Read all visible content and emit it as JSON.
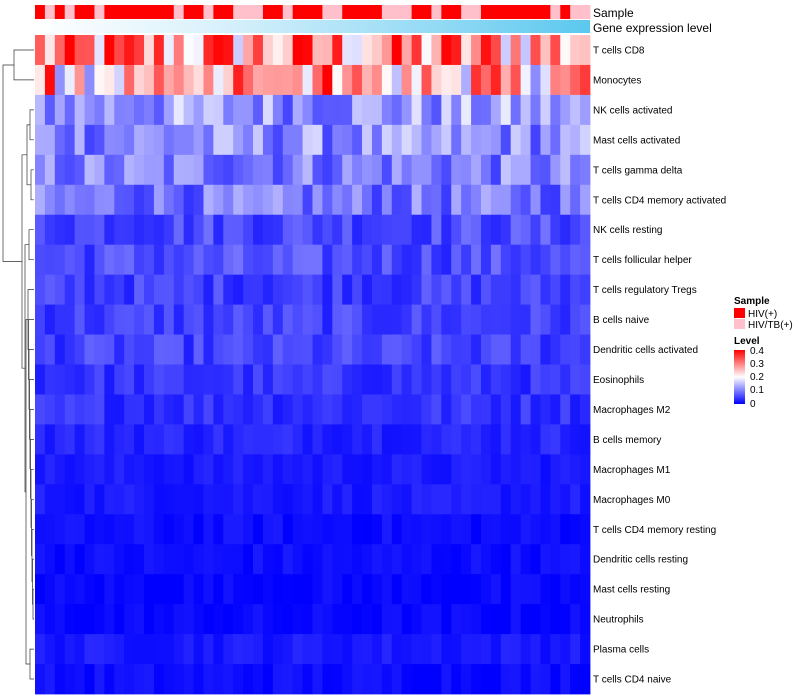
{
  "chart_data": {
    "type": "heatmap",
    "annotation_labels": {
      "sample": "Sample",
      "gene_expression": "Gene expression level"
    },
    "legend": {
      "sample_title": "Sample",
      "sample_items": [
        {
          "label": "HIV(+)",
          "color": "#ff0000"
        },
        {
          "label": "HIV/TB(+)",
          "color": "#ffc0cb"
        }
      ],
      "level_title": "Level",
      "level_ticks": [
        "0.4",
        "0.3",
        "0.2",
        "0.1",
        "0"
      ],
      "level_range": [
        0,
        0.4
      ],
      "level_colors": [
        "#0000ff",
        "#ffffff",
        "#ff0000"
      ]
    },
    "sample_groups": "HTHTHHTHHHHHHHTHHTHHTTTHHTHHHTTHHHHTTTHHTHHTTHHHHHHHTHTT",
    "rows": [
      "T cells CD8",
      "Monocytes",
      "NK cells activated",
      "Mast cells activated",
      "T cells gamma delta",
      "T cells CD4 memory activated",
      "NK cells resting",
      "T cells follicular helper",
      "T cells regulatory  Tregs",
      "B cells naive",
      "Dendritic cells activated",
      "Eosinophils",
      "Macrophages M2",
      "B cells memory",
      "Macrophages M1",
      "Macrophages M0",
      "T cells CD4 memory resting",
      "Dendritic cells resting",
      "Mast cells resting",
      "Neutrophils",
      "Plasma cells",
      "T cells CD4 naive"
    ],
    "row_levels": [
      0.28,
      0.24,
      0.12,
      0.11,
      0.1,
      0.09,
      0.06,
      0.06,
      0.05,
      0.05,
      0.05,
      0.04,
      0.04,
      0.03,
      0.02,
      0.02,
      0.01,
      0.01,
      0.005,
      0.005,
      0.02,
      0.01
    ],
    "n_samples": 56
  }
}
